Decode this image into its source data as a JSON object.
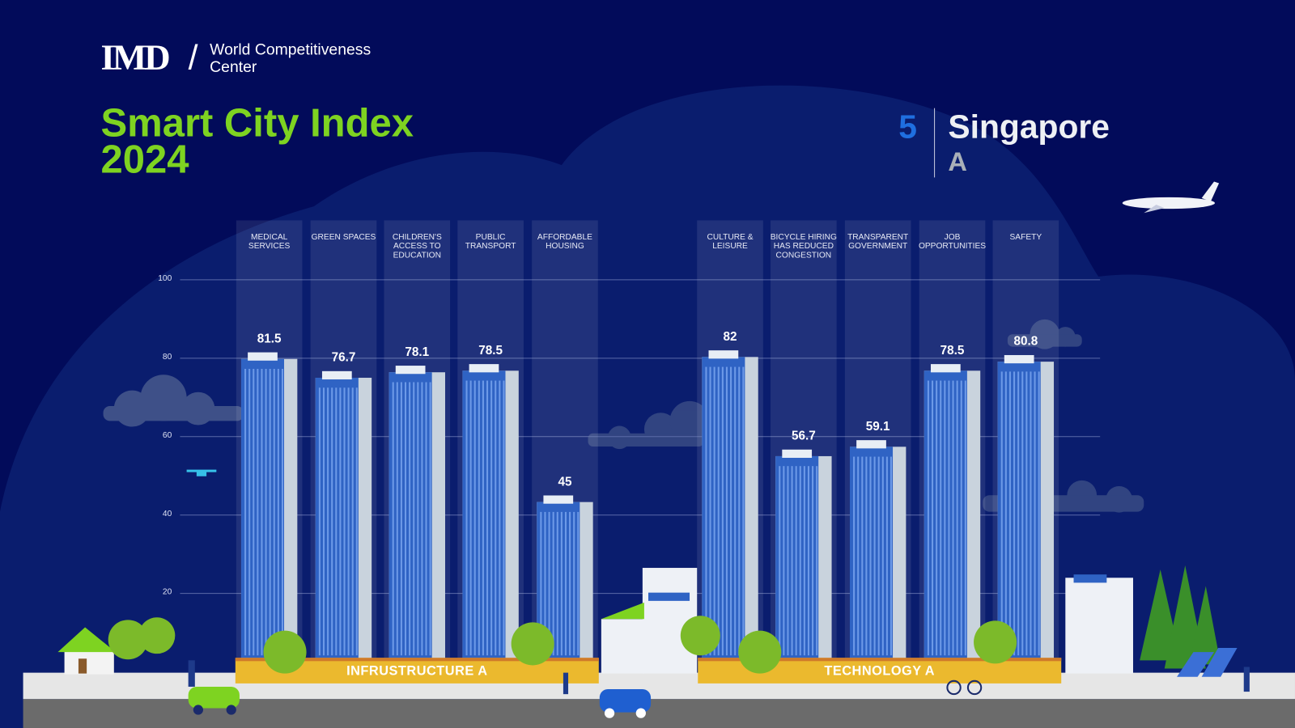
{
  "header": {
    "logo_text": "IMD",
    "org_line": "World Competitiveness Center",
    "title": "Smart City Index 2024"
  },
  "city": {
    "rank": "5",
    "name": "Singapore",
    "grade": "A"
  },
  "bands": [
    {
      "label": "INFRUSTRUCTURE  A"
    },
    {
      "label": "TECHNOLOGY  A"
    }
  ],
  "colors": {
    "background": "#020b5a",
    "cloud": "#0a1d6e",
    "title_green": "#7ed321",
    "rank_blue": "#1f6fe0",
    "building_blue": "#2f63c4",
    "band_yellow": "#ebb92e",
    "road": "#6b6b6b"
  },
  "chart_data": {
    "type": "bar",
    "categories": [
      "Medical services",
      "Green spaces",
      "Children's access to education",
      "Public transport",
      "Affordable housing",
      "Culture & leisure",
      "Bicycle hiring has reduced congestion",
      "Transparent government",
      "Job opportunities",
      "Safety"
    ],
    "groups": [
      {
        "label": "INFRUSTRUCTURE  A",
        "categories": [
          0,
          1,
          2,
          3,
          4
        ]
      },
      {
        "label": "TECHNOLOGY  A",
        "categories": [
          5,
          6,
          7,
          8,
          9
        ]
      }
    ],
    "values": [
      81.5,
      76.7,
      78.1,
      78.5,
      45,
      82,
      56.7,
      59.1,
      78.5,
      80.8
    ],
    "value_labels": [
      "81.5",
      "76.7",
      "78.1",
      "78.5",
      "45",
      "82",
      "56.7",
      "59.1",
      "78.5",
      "80.8"
    ],
    "ylim": [
      0,
      100
    ],
    "yticks": [
      "20",
      "40",
      "60",
      "80",
      "100"
    ],
    "grid": true,
    "title": "",
    "xlabel": "",
    "ylabel": ""
  }
}
